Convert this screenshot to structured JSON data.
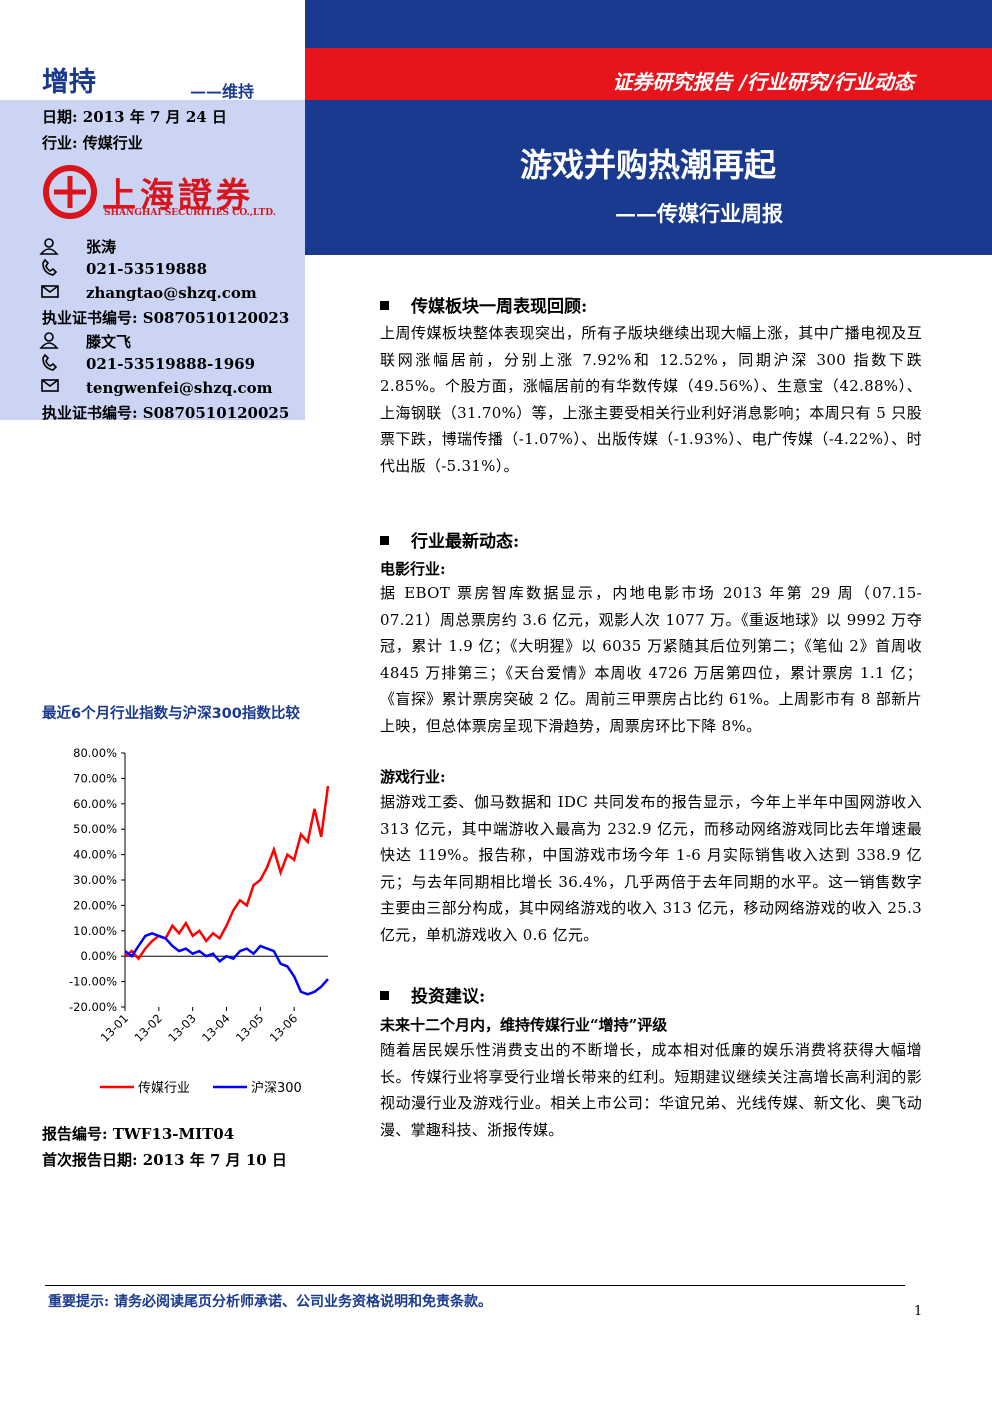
{
  "header": {
    "rating": "增持",
    "rating_prev": "——维持",
    "date": "日期: 2013 年 7 月 24 日",
    "industry": "行业: 传媒行业",
    "report_type": "证券研究报告 /行业研究/行业动态",
    "title": "游戏并购热潮再起",
    "subtitle": "——传媒行业周报"
  },
  "logo": {
    "name": "上海證券",
    "name_en": "SHANGHAI SECURITIES CO.,LTD."
  },
  "analysts": [
    {
      "name": "张涛",
      "phone": "021-53519888",
      "email": "zhangtao@shzq.com",
      "license": "执业证书编号: S0870510120023"
    },
    {
      "name": "滕文飞",
      "phone": "021-53519888-1969",
      "email": "tengwenfei@shzq.com",
      "license": "执业证书编号: S0870510120025"
    }
  ],
  "sections": [
    {
      "heading": "传媒板块一周表现回顾:",
      "text": "上周传媒板块整体表现突出，所有子版块继续出现大幅上涨，其中广播电视及互联网涨幅居前，分别上涨 7.92%和 12.52%，同期沪深 300 指数下跌 2.85%。个股方面，涨幅居前的有华数传媒（49.56%）、生意宝（42.88%）、上海钢联（31.70%）等，上涨主要受相关行业利好消息影响；本周只有 5 只股票下跌，博瑞传播（-1.07%）、出版传媒（-1.93%）、电广传媒（-4.22%）、时代出版（-5.31%）。"
    },
    {
      "heading": "行业最新动态:",
      "subsections": [
        {
          "title": "电影行业:",
          "text": "据 EBOT 票房智库数据显示，内地电影市场 2013 年第 29 周（07.15-07.21）周总票房约 3.6 亿元，观影人次 1077 万。《重返地球》以 9992 万夺冠，累计 1.9 亿；《大明猩》以 6035 万紧随其后位列第二；《笔仙 2》首周收 4845 万排第三；《天台爱情》本周收 4726 万居第四位，累计票房 1.1 亿；《盲探》累计票房突破 2 亿。周前三甲票房占比约 61%。上周影市有 8 部新片上映，但总体票房呈现下滑趋势，周票房环比下降 8%。"
        },
        {
          "title": "游戏行业:",
          "text": "据游戏工委、伽马数据和 IDC 共同发布的报告显示，今年上半年中国网游收入 313 亿元，其中端游收入最高为 232.9 亿元，而移动网络游戏同比去年增速最快达 119%。报告称，中国游戏市场今年 1-6 月实际销售收入达到 338.9 亿元；与去年同期相比增长 36.4%，几乎两倍于去年同期的水平。这一销售数字主要由三部分构成，其中网络游戏的收入 313 亿元，移动网络游戏的收入 25.3 亿元，单机游戏收入 0.6 亿元。"
        }
      ]
    },
    {
      "heading": "投资建议:",
      "subtitle": "未来十二个月内，维持传媒行业“增持”评级",
      "text": "随着居民娱乐性消费支出的不断增长，成本相对低廉的娱乐消费将获得大幅增长。传媒行业将享受行业增长带来的红利。短期建议继续关注高增长高利润的影视动漫行业及游戏行业。相关上市公司：华谊兄弟、光线传媒、新文化、奥飞动漫、掌趣科技、浙报传媒。"
    }
  ],
  "footer": {
    "report_no": "报告编号: TWF13-MIT04",
    "first_date": "首次报告日期: 2013 年 7 月 10 日",
    "notice": "重要提示: 请务必阅读尾页分析师承诺、公司业务资格说明和免责条款。",
    "page": "1"
  },
  "chart_data": {
    "type": "line",
    "title": "最近6个月行业指数与沪深300指数比较",
    "categories": [
      "13-01",
      null,
      null,
      null,
      null,
      "13-02",
      null,
      null,
      null,
      null,
      "13-03",
      null,
      null,
      null,
      null,
      "13-04",
      null,
      null,
      null,
      null,
      "13-05",
      null,
      null,
      null,
      null,
      "13-06",
      null,
      null,
      null,
      null,
      null
    ],
    "series": [
      {
        "name": "传媒行业",
        "color": "#ff0000",
        "values": [
          0,
          2,
          -1,
          3,
          6,
          8,
          7,
          12,
          9,
          13,
          8,
          10,
          6,
          9,
          7,
          12,
          18,
          22,
          20,
          28,
          30,
          35,
          42,
          33,
          40,
          38,
          48,
          45,
          58,
          47,
          67
        ]
      },
      {
        "name": "沪深300",
        "color": "#0000ff",
        "values": [
          2,
          0,
          4,
          8,
          9,
          8,
          7,
          4,
          2,
          3,
          1,
          2,
          0,
          1,
          -2,
          0,
          -1,
          2,
          3,
          1,
          4,
          3,
          2,
          -3,
          -4,
          -8,
          -14,
          -15,
          -14,
          -12,
          -9
        ]
      }
    ],
    "ylim": [
      -20,
      80
    ],
    "yticks": [
      {
        "value": -20,
        "label": "-20.00%"
      },
      {
        "value": -10,
        "label": "-10.00%"
      },
      {
        "value": 0,
        "label": "0.00%"
      },
      {
        "value": 10,
        "label": "10.00%"
      },
      {
        "value": 20,
        "label": "20.00%"
      },
      {
        "value": 30,
        "label": "30.00%"
      },
      {
        "value": 40,
        "label": "40.00%"
      },
      {
        "value": 50,
        "label": "50.00%"
      },
      {
        "value": 60,
        "label": "60.00%"
      },
      {
        "value": 70,
        "label": "70.00%"
      },
      {
        "value": 80,
        "label": "80.00%"
      }
    ],
    "legend": "bottom",
    "grid": false
  }
}
